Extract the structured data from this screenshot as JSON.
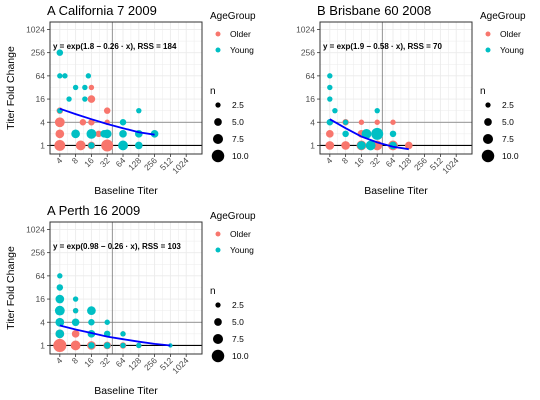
{
  "chart_data": [
    {
      "type": "scatter",
      "panel_tag": "A",
      "title": "California 7 2009",
      "xlabel": "Baseline Titer",
      "ylabel": "Titer Fold Change",
      "x_scale": "log2",
      "y_scale": "log2",
      "x_ticks": [
        "4",
        "8",
        "16",
        "32",
        "64",
        "128",
        "256",
        "512",
        "1024"
      ],
      "y_ticks": [
        "1",
        "4",
        "16",
        "64",
        "256",
        "1024"
      ],
      "xlim": [
        2.6,
        2048
      ],
      "ylim": [
        0.6,
        1600
      ],
      "annotation": "y = exp(1.8 − 0.26 · x), RSS = 184",
      "fit_curve": [
        [
          4,
          9
        ],
        [
          8,
          6.5
        ],
        [
          16,
          4.8
        ],
        [
          32,
          3.6
        ],
        [
          64,
          2.8
        ],
        [
          128,
          2.2
        ],
        [
          256,
          1.9
        ]
      ],
      "series": [
        {
          "name": "Older",
          "points": [
            {
              "x": 4,
              "y": 1,
              "n": 7
            },
            {
              "x": 4,
              "y": 2,
              "n": 5
            },
            {
              "x": 4,
              "y": 4,
              "n": 6
            },
            {
              "x": 4,
              "y": 8,
              "n": 3
            },
            {
              "x": 8,
              "y": 2,
              "n": 4
            },
            {
              "x": 10,
              "y": 1,
              "n": 6
            },
            {
              "x": 11,
              "y": 4,
              "n": 3
            },
            {
              "x": 16,
              "y": 1,
              "n": 4
            },
            {
              "x": 16,
              "y": 2,
              "n": 5
            },
            {
              "x": 16,
              "y": 4,
              "n": 3
            },
            {
              "x": 16,
              "y": 16,
              "n": 4
            },
            {
              "x": 16,
              "y": 32,
              "n": 2
            },
            {
              "x": 22,
              "y": 2,
              "n": 3
            },
            {
              "x": 32,
              "y": 1,
              "n": 8
            },
            {
              "x": 32,
              "y": 4,
              "n": 2
            },
            {
              "x": 32,
              "y": 8,
              "n": 3
            }
          ]
        },
        {
          "name": "Young",
          "points": [
            {
              "x": 4,
              "y": 256,
              "n": 3
            },
            {
              "x": 4,
              "y": 64,
              "n": 2
            },
            {
              "x": 4,
              "y": 8,
              "n": 2
            },
            {
              "x": 5,
              "y": 64,
              "n": 2
            },
            {
              "x": 6,
              "y": 16,
              "n": 2
            },
            {
              "x": 8,
              "y": 32,
              "n": 2
            },
            {
              "x": 8,
              "y": 2,
              "n": 5
            },
            {
              "x": 12,
              "y": 16,
              "n": 2
            },
            {
              "x": 12,
              "y": 32,
              "n": 2
            },
            {
              "x": 14,
              "y": 64,
              "n": 2
            },
            {
              "x": 16,
              "y": 2,
              "n": 6
            },
            {
              "x": 16,
              "y": 1,
              "n": 3
            },
            {
              "x": 28,
              "y": 2,
              "n": 4
            },
            {
              "x": 32,
              "y": 2,
              "n": 5
            },
            {
              "x": 64,
              "y": 1,
              "n": 6
            },
            {
              "x": 64,
              "y": 2,
              "n": 4
            },
            {
              "x": 64,
              "y": 4,
              "n": 3
            },
            {
              "x": 128,
              "y": 1,
              "n": 4
            },
            {
              "x": 128,
              "y": 2,
              "n": 4
            },
            {
              "x": 128,
              "y": 8,
              "n": 2
            },
            {
              "x": 256,
              "y": 2,
              "n": 4
            }
          ]
        }
      ]
    },
    {
      "type": "scatter",
      "panel_tag": "B",
      "title": "Brisbane 60 2008",
      "xlabel": "Baseline Titer",
      "ylabel": "",
      "x_scale": "log2",
      "y_scale": "log2",
      "x_ticks": [
        "4",
        "8",
        "16",
        "32",
        "64",
        "128",
        "256",
        "512",
        "1024"
      ],
      "y_ticks": [
        "1",
        "4",
        "16",
        "64",
        "256",
        "1024"
      ],
      "xlim": [
        2.6,
        2048
      ],
      "ylim": [
        0.6,
        1600
      ],
      "annotation": "y = exp(1.9 − 0.58 · x), RSS = 70",
      "fit_curve": [
        [
          4,
          4.8
        ],
        [
          8,
          2.8
        ],
        [
          16,
          1.7
        ],
        [
          32,
          1.2
        ],
        [
          64,
          0.92
        ],
        [
          128,
          0.8
        ]
      ],
      "series": [
        {
          "name": "Older",
          "points": [
            {
              "x": 4,
              "y": 1,
              "n": 5
            },
            {
              "x": 4,
              "y": 2,
              "n": 4
            },
            {
              "x": 8,
              "y": 1,
              "n": 5
            },
            {
              "x": 8,
              "y": 4,
              "n": 3
            },
            {
              "x": 16,
              "y": 1,
              "n": 6
            },
            {
              "x": 16,
              "y": 2,
              "n": 4
            },
            {
              "x": 16,
              "y": 4,
              "n": 2
            },
            {
              "x": 32,
              "y": 1,
              "n": 6
            },
            {
              "x": 32,
              "y": 4,
              "n": 2
            },
            {
              "x": 64,
              "y": 1,
              "n": 6
            },
            {
              "x": 64,
              "y": 4,
              "n": 2
            },
            {
              "x": 128,
              "y": 1,
              "n": 4
            }
          ]
        },
        {
          "name": "Young",
          "points": [
            {
              "x": 4,
              "y": 64,
              "n": 2
            },
            {
              "x": 4,
              "y": 32,
              "n": 2
            },
            {
              "x": 4,
              "y": 16,
              "n": 2
            },
            {
              "x": 5,
              "y": 8,
              "n": 2
            },
            {
              "x": 4,
              "y": 4,
              "n": 3
            },
            {
              "x": 8,
              "y": 2,
              "n": 3
            },
            {
              "x": 8,
              "y": 4,
              "n": 2
            },
            {
              "x": 16,
              "y": 1,
              "n": 5
            },
            {
              "x": 20,
              "y": 2,
              "n": 6
            },
            {
              "x": 24,
              "y": 1,
              "n": 6
            },
            {
              "x": 32,
              "y": 2,
              "n": 8
            },
            {
              "x": 32,
              "y": 8,
              "n": 2
            },
            {
              "x": 64,
              "y": 1,
              "n": 4
            },
            {
              "x": 64,
              "y": 2,
              "n": 3
            }
          ]
        }
      ]
    },
    {
      "type": "scatter",
      "panel_tag": "A",
      "title": "Perth 16 2009",
      "xlabel": "Baseline Titer",
      "ylabel": "Titer Fold Change",
      "x_scale": "log2",
      "y_scale": "log2",
      "x_ticks": [
        "4",
        "8",
        "16",
        "32",
        "64",
        "128",
        "256",
        "512",
        "1024"
      ],
      "y_ticks": [
        "1",
        "4",
        "16",
        "64",
        "256",
        "1024"
      ],
      "xlim": [
        2.6,
        2048
      ],
      "ylim": [
        0.6,
        1600
      ],
      "annotation": "y = exp(0.98 − 0.26 · x), RSS = 103",
      "fit_curve": [
        [
          4,
          3.3
        ],
        [
          8,
          2.6
        ],
        [
          16,
          2.1
        ],
        [
          32,
          1.7
        ],
        [
          64,
          1.45
        ],
        [
          128,
          1.25
        ],
        [
          256,
          1.1
        ],
        [
          512,
          1.0
        ]
      ],
      "series": [
        {
          "name": "Older",
          "points": [
            {
              "x": 4,
              "y": 1,
              "n": 9
            },
            {
              "x": 4,
              "y": 2,
              "n": 5
            },
            {
              "x": 4,
              "y": 4,
              "n": 3
            },
            {
              "x": 8,
              "y": 1,
              "n": 6
            },
            {
              "x": 8,
              "y": 2,
              "n": 4
            },
            {
              "x": 8,
              "y": 8,
              "n": 2
            },
            {
              "x": 16,
              "y": 1,
              "n": 5
            },
            {
              "x": 16,
              "y": 2,
              "n": 3
            },
            {
              "x": 16,
              "y": 4,
              "n": 2
            },
            {
              "x": 32,
              "y": 1,
              "n": 4
            },
            {
              "x": 64,
              "y": 1,
              "n": 3
            },
            {
              "x": 64,
              "y": 2,
              "n": 2
            },
            {
              "x": 128,
              "y": 1,
              "n": 2
            }
          ]
        },
        {
          "name": "Young",
          "points": [
            {
              "x": 4,
              "y": 64,
              "n": 2
            },
            {
              "x": 4,
              "y": 32,
              "n": 3
            },
            {
              "x": 4,
              "y": 16,
              "n": 5
            },
            {
              "x": 4,
              "y": 8,
              "n": 6
            },
            {
              "x": 4,
              "y": 4,
              "n": 5
            },
            {
              "x": 4,
              "y": 2,
              "n": 5
            },
            {
              "x": 8,
              "y": 4,
              "n": 4
            },
            {
              "x": 8,
              "y": 8,
              "n": 2
            },
            {
              "x": 8,
              "y": 16,
              "n": 2
            },
            {
              "x": 16,
              "y": 8,
              "n": 5
            },
            {
              "x": 16,
              "y": 4,
              "n": 3
            },
            {
              "x": 16,
              "y": 2,
              "n": 4
            },
            {
              "x": 16,
              "y": 1,
              "n": 3
            },
            {
              "x": 32,
              "y": 2,
              "n": 3
            },
            {
              "x": 32,
              "y": 1,
              "n": 3
            },
            {
              "x": 32,
              "y": 4,
              "n": 2
            },
            {
              "x": 64,
              "y": 2,
              "n": 2
            },
            {
              "x": 64,
              "y": 1,
              "n": 2
            },
            {
              "x": 128,
              "y": 1,
              "n": 2
            },
            {
              "x": 512,
              "y": 1,
              "n": 1
            }
          ]
        }
      ]
    }
  ],
  "legend": {
    "color_title": "AgeGroup",
    "groups": [
      {
        "label": "Older",
        "color": "#f8766d"
      },
      {
        "label": "Young",
        "color": "#00bfc4"
      }
    ],
    "size_title": "n",
    "sizes": [
      "2.5",
      "5.0",
      "7.5",
      "10.0"
    ]
  },
  "style": {
    "fit_color": "#0000ff",
    "grid_color": "#ebebeb",
    "ref_line_color": "#000000"
  }
}
